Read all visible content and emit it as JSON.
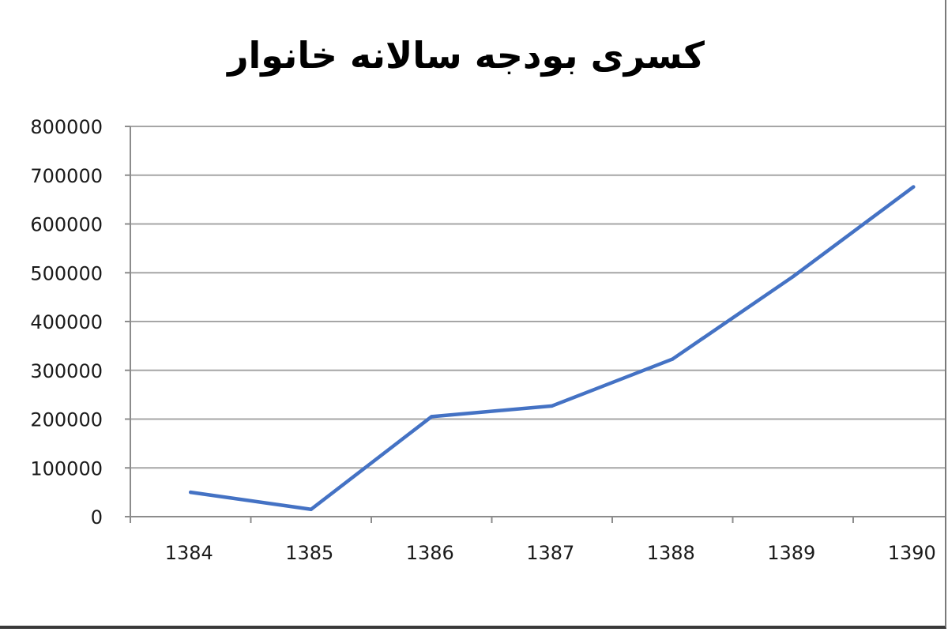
{
  "chart_data": {
    "type": "line",
    "title": "کسری بودجه سالانه خانوار",
    "xlabel": "",
    "ylabel": "",
    "x": [
      "1384",
      "1385",
      "1386",
      "1387",
      "1388",
      "1389",
      "1390"
    ],
    "series": [
      {
        "values": [
          50000,
          15000,
          205000,
          227000,
          323000,
          492000,
          676000
        ]
      }
    ],
    "ylim": [
      0,
      800000
    ],
    "yticks": [
      "0",
      "100000",
      "200000",
      "300000",
      "400000",
      "500000",
      "600000",
      "700000",
      "800000"
    ],
    "grid": true,
    "legend": "none",
    "colors": {
      "line": "#4472c4",
      "grid": "#a6a6a6",
      "axis": "#8c8c8c"
    }
  }
}
